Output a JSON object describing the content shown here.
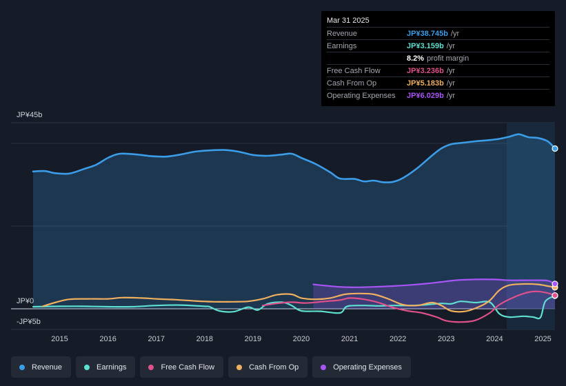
{
  "tooltip": {
    "date": "Mar 31 2025",
    "rows": [
      {
        "label": "Revenue",
        "value": "JP¥38.745b",
        "unit": "/yr",
        "color": "#3b9de8"
      },
      {
        "label": "Earnings",
        "value": "JP¥3.159b",
        "unit": "/yr",
        "color": "#5ee0d0"
      },
      {
        "label": "",
        "value": "8.2%",
        "unit": "profit margin",
        "color": "#ffffff"
      },
      {
        "label": "Free Cash Flow",
        "value": "JP¥3.236b",
        "unit": "/yr",
        "color": "#e0508a"
      },
      {
        "label": "Cash From Op",
        "value": "JP¥5.183b",
        "unit": "/yr",
        "color": "#f0b060"
      },
      {
        "label": "Operating Expenses",
        "value": "JP¥6.029b",
        "unit": "/yr",
        "color": "#a855f7"
      }
    ]
  },
  "legend": [
    {
      "label": "Revenue",
      "color": "#3b9de8"
    },
    {
      "label": "Earnings",
      "color": "#5ee0d0"
    },
    {
      "label": "Free Cash Flow",
      "color": "#e0508a"
    },
    {
      "label": "Cash From Op",
      "color": "#f0b060"
    },
    {
      "label": "Operating Expenses",
      "color": "#a855f7"
    }
  ],
  "chart_data": {
    "type": "line",
    "title": "",
    "ylabel": "",
    "xlabel": "",
    "y_tick_labels": [
      "JP¥45b",
      "JP¥0",
      "-JP¥5b"
    ],
    "ylim": [
      -5,
      45
    ],
    "xlim": [
      2014.45,
      2025.25
    ],
    "x_tick_labels": [
      "2015",
      "2016",
      "2017",
      "2018",
      "2019",
      "2020",
      "2021",
      "2022",
      "2023",
      "2024",
      "2025"
    ],
    "x_ticks": [
      2015,
      2016,
      2017,
      2018,
      2019,
      2020,
      2021,
      2022,
      2023,
      2024,
      2025
    ],
    "highlight_start": 2024.25,
    "series": [
      {
        "name": "Revenue",
        "color": "#3b9de8",
        "fill": true,
        "x": [
          2014.45,
          2014.7,
          2014.9,
          2015.2,
          2015.5,
          2015.75,
          2016.0,
          2016.25,
          2016.6,
          2016.9,
          2017.2,
          2017.5,
          2017.8,
          2018.1,
          2018.4,
          2018.7,
          2019.0,
          2019.3,
          2019.6,
          2019.8,
          2020.0,
          2020.3,
          2020.6,
          2020.8,
          2021.1,
          2021.3,
          2021.5,
          2021.7,
          2021.9,
          2022.1,
          2022.4,
          2022.7,
          2022.9,
          2023.1,
          2023.3,
          2023.6,
          2023.9,
          2024.1,
          2024.3,
          2024.5,
          2024.7,
          2024.9,
          2025.1,
          2025.25
        ],
        "y": [
          33.2,
          33.3,
          32.8,
          32.7,
          33.8,
          34.8,
          36.5,
          37.5,
          37.3,
          36.9,
          36.8,
          37.3,
          38.0,
          38.3,
          38.4,
          38.0,
          37.2,
          37.0,
          37.3,
          37.5,
          36.5,
          35.0,
          33.0,
          31.5,
          31.4,
          30.8,
          31.0,
          30.6,
          30.7,
          31.6,
          34.0,
          37.0,
          38.8,
          39.8,
          40.1,
          40.5,
          40.8,
          41.1,
          41.6,
          42.2,
          41.5,
          41.3,
          40.5,
          38.745
        ]
      },
      {
        "name": "Earnings",
        "color": "#5ee0d0",
        "fill": false,
        "x": [
          2014.45,
          2015.0,
          2015.5,
          2016.0,
          2016.5,
          2017.0,
          2017.5,
          2018.0,
          2018.1,
          2018.3,
          2018.6,
          2018.9,
          2019.1,
          2019.3,
          2019.6,
          2019.8,
          2020.0,
          2020.4,
          2020.8,
          2020.95,
          2021.3,
          2021.6,
          2021.9,
          2022.3,
          2022.6,
          2022.9,
          2023.1,
          2023.3,
          2023.6,
          2023.9,
          2024.1,
          2024.3,
          2024.6,
          2024.8,
          2024.95,
          2025.05,
          2025.25
        ],
        "y": [
          0.5,
          0.6,
          0.6,
          0.5,
          0.5,
          0.8,
          0.9,
          0.6,
          0.5,
          -0.5,
          -0.7,
          0.4,
          -0.3,
          1.2,
          1.6,
          0.8,
          -0.5,
          -0.6,
          -1.0,
          0.6,
          0.8,
          0.7,
          0.8,
          0.8,
          1.0,
          1.3,
          1.2,
          1.8,
          1.5,
          1.6,
          -1.2,
          -2.0,
          -1.8,
          -2.0,
          -2.1,
          1.8,
          3.159
        ]
      },
      {
        "name": "Free Cash Flow",
        "color": "#e0508a",
        "fill": false,
        "x": [
          2019.2,
          2019.5,
          2019.8,
          2020.1,
          2020.5,
          2020.8,
          2021.0,
          2021.3,
          2021.6,
          2021.9,
          2022.2,
          2022.5,
          2022.8,
          2023.0,
          2023.3,
          2023.6,
          2023.9,
          2024.1,
          2024.4,
          2024.7,
          2024.9,
          2025.1,
          2025.25
        ],
        "y": [
          0.8,
          1.3,
          1.6,
          1.4,
          1.8,
          2.1,
          2.6,
          2.3,
          1.5,
          0.3,
          -0.5,
          -1.0,
          -2.0,
          -2.9,
          -3.2,
          -2.8,
          -1.0,
          1.0,
          2.8,
          4.0,
          4.2,
          3.8,
          3.236
        ]
      },
      {
        "name": "Cash From Op",
        "color": "#f0b060",
        "fill": false,
        "x": [
          2014.65,
          2014.9,
          2015.2,
          2015.6,
          2016.0,
          2016.3,
          2016.7,
          2017.0,
          2017.4,
          2017.8,
          2018.2,
          2018.6,
          2018.9,
          2019.2,
          2019.5,
          2019.8,
          2020.0,
          2020.3,
          2020.6,
          2020.9,
          2021.2,
          2021.5,
          2021.8,
          2022.1,
          2022.4,
          2022.7,
          2022.9,
          2023.1,
          2023.4,
          2023.7,
          2023.9,
          2024.1,
          2024.3,
          2024.6,
          2024.9,
          2025.1,
          2025.25
        ],
        "y": [
          0.6,
          1.5,
          2.3,
          2.4,
          2.4,
          2.7,
          2.6,
          2.4,
          2.2,
          1.9,
          1.7,
          1.7,
          1.8,
          2.4,
          3.4,
          3.5,
          2.6,
          2.3,
          2.6,
          3.5,
          3.7,
          3.5,
          2.4,
          1.0,
          0.8,
          1.5,
          0.8,
          -0.5,
          -0.6,
          0.6,
          2.0,
          4.5,
          5.7,
          6.0,
          5.9,
          5.5,
          5.183
        ]
      },
      {
        "name": "Operating Expenses",
        "color": "#a855f7",
        "fill": true,
        "x": [
          2020.25,
          2020.5,
          2020.8,
          2021.1,
          2021.5,
          2021.9,
          2022.3,
          2022.6,
          2022.9,
          2023.2,
          2023.6,
          2024.0,
          2024.3,
          2024.6,
          2024.9,
          2025.1,
          2025.25
        ],
        "y": [
          5.9,
          5.6,
          5.3,
          5.2,
          5.3,
          5.5,
          5.8,
          6.1,
          6.5,
          6.9,
          7.1,
          7.1,
          6.9,
          6.9,
          6.9,
          6.8,
          6.029
        ]
      }
    ]
  }
}
